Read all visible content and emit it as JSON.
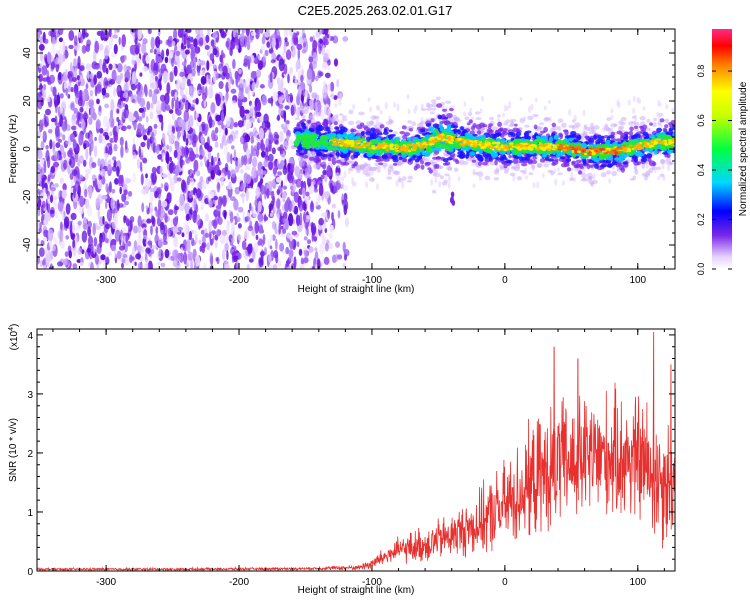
{
  "title": "C2E5.2025.263.02.01.G17",
  "chart_data": [
    {
      "type": "heatmap",
      "title": "C2E5.2025.263.02.01.G17",
      "xlabel": "Height of straight line (km)",
      "ylabel": "Frequency (Hz)",
      "xlim": [
        -352,
        128
      ],
      "ylim": [
        -50,
        50
      ],
      "xticks": [
        -300,
        -200,
        -100,
        0,
        100
      ],
      "yticks": [
        -40,
        -20,
        0,
        20,
        40
      ],
      "noise_region_x": [
        -352,
        -130
      ],
      "signal_onset_x": -157,
      "signal_center_freq": [
        [
          -157,
          4
        ],
        [
          -130,
          3
        ],
        [
          -110,
          2
        ],
        [
          -90,
          1
        ],
        [
          -75,
          0
        ],
        [
          -60,
          2
        ],
        [
          -48,
          5
        ],
        [
          -35,
          3
        ],
        [
          -20,
          2
        ],
        [
          0,
          1
        ],
        [
          20,
          1
        ],
        [
          40,
          1
        ],
        [
          60,
          -1
        ],
        [
          80,
          -1
        ],
        [
          100,
          1
        ],
        [
          115,
          3
        ],
        [
          128,
          3
        ]
      ],
      "isolated_blob": {
        "x": -40,
        "freq": -21
      },
      "colorbar": {
        "label": "Normalized spectral amplitude",
        "ticks": [
          0.0,
          0.2,
          0.4,
          0.6,
          0.8
        ],
        "tick_labels": [
          "0.0",
          "0.2",
          "0.4",
          "0.6",
          "0.8"
        ],
        "range": [
          0,
          0.97
        ]
      }
    },
    {
      "type": "line",
      "xlabel": "Height of straight line (km)",
      "ylabel": "SNR (10 * v/v)",
      "y_multiplier_label": "(x10",
      "y_multiplier_exp": "4",
      "y_multiplier_close": ")",
      "xlim": [
        -352,
        128
      ],
      "ylim": [
        0,
        4.1
      ],
      "xticks": [
        -300,
        -200,
        -100,
        0,
        100
      ],
      "yticks": [
        0,
        1,
        2,
        3,
        4
      ],
      "color": "#e8302e",
      "envelope": [
        [
          -352,
          0.03,
          0.02
        ],
        [
          -250,
          0.03,
          0.02
        ],
        [
          -150,
          0.04,
          0.02
        ],
        [
          -110,
          0.06,
          0.04
        ],
        [
          -100,
          0.12,
          0.1
        ],
        [
          -90,
          0.25,
          0.15
        ],
        [
          -80,
          0.35,
          0.2
        ],
        [
          -60,
          0.45,
          0.3
        ],
        [
          -40,
          0.6,
          0.35
        ],
        [
          -20,
          0.8,
          0.5
        ],
        [
          0,
          1.1,
          0.7
        ],
        [
          20,
          1.5,
          0.9
        ],
        [
          40,
          1.8,
          1.0
        ],
        [
          60,
          1.9,
          1.0
        ],
        [
          80,
          1.95,
          1.0
        ],
        [
          100,
          1.9,
          1.05
        ],
        [
          115,
          1.6,
          1.1
        ],
        [
          128,
          1.5,
          1.0
        ]
      ],
      "peaks": [
        [
          37,
          3.8
        ],
        [
          55,
          3.6
        ],
        [
          112,
          4.05
        ],
        [
          125,
          3.5
        ]
      ]
    }
  ],
  "colors": {
    "noise": "#7a28e8",
    "signal_core": "#ff3a1a",
    "line": "#e8302e"
  }
}
